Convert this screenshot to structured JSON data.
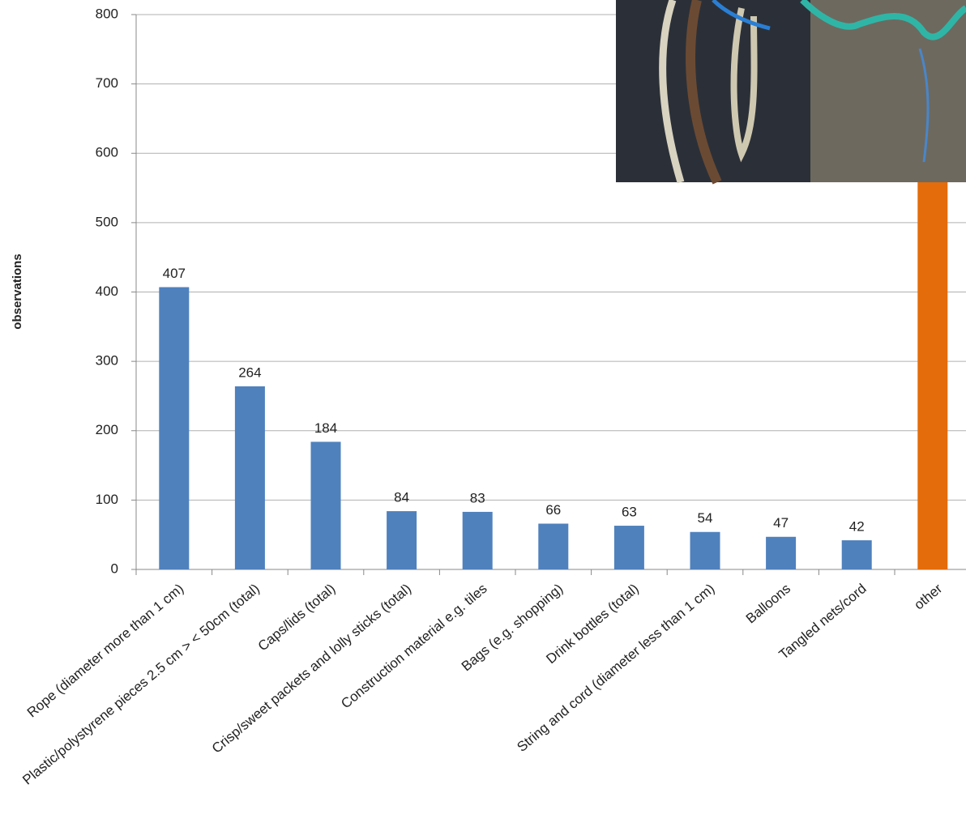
{
  "chart_data": {
    "type": "bar",
    "y_label": "observations",
    "categories": [
      "Rope (diameter more than 1 cm)",
      "Plastic/polystyrene pieces 2.5 cm > < 50cm (total)",
      "Caps/lids (total)",
      "Crisp/sweet packets and lolly sticks (total)",
      "Construction material e.g. tiles",
      "Bags (e.g. shopping)",
      "Drink bottles (total)",
      "String and cord (diameter less than 1 cm)",
      "Balloons",
      "Tangled nets/cord",
      "other"
    ],
    "values": [
      407,
      264,
      184,
      84,
      83,
      66,
      63,
      54,
      47,
      42,
      800
    ],
    "colors": [
      "#4f81bd",
      "#4f81bd",
      "#4f81bd",
      "#4f81bd",
      "#4f81bd",
      "#4f81bd",
      "#4f81bd",
      "#4f81bd",
      "#4f81bd",
      "#4f81bd",
      "#e46c0a"
    ],
    "value_labels": [
      "407",
      "264",
      "184",
      "84",
      "83",
      "66",
      "63",
      "54",
      "47",
      "42",
      null
    ],
    "ylim": [
      0,
      800
    ],
    "yticks": [
      0,
      100,
      200,
      300,
      400,
      500,
      600,
      700,
      800
    ],
    "grid": true
  }
}
